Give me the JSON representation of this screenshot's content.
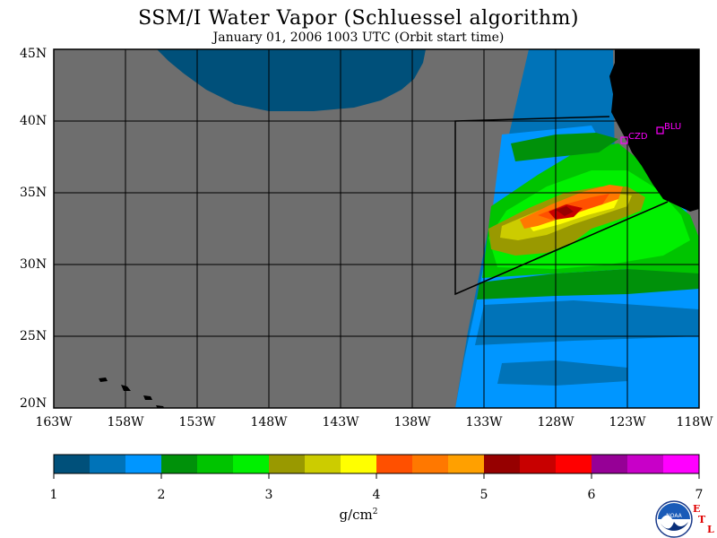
{
  "title": "SSM/I Water Vapor (Schluessel algorithm)",
  "subtitle": "January 01, 2006  1003 UTC  (Orbit start time)",
  "lat_labels": [
    "45N",
    "40N",
    "35N",
    "30N",
    "25N",
    "20N"
  ],
  "lon_labels": [
    "163W",
    "158W",
    "153W",
    "148W",
    "143W",
    "138W",
    "133W",
    "128W",
    "123W",
    "118W"
  ],
  "map_extent": {
    "lon": [
      -163,
      -118
    ],
    "lat": [
      20,
      45
    ]
  },
  "stations": [
    {
      "code": "CZD",
      "lon": -123.0,
      "lat": 38.6
    },
    {
      "code": "BLU",
      "lon": -120.8,
      "lat": 39.3
    }
  ],
  "colorbar": {
    "min": 1,
    "max": 7,
    "tick_labels": [
      "1",
      "2",
      "3",
      "4",
      "5",
      "6",
      "7"
    ],
    "colors": [
      "#00507a",
      "#0073b8",
      "#0096ff",
      "#00910a",
      "#00c400",
      "#00f000",
      "#999900",
      "#cccc00",
      "#ffff00",
      "#ff5000",
      "#ff7800",
      "#ffa000",
      "#960000",
      "#c80000",
      "#ff0000",
      "#960096",
      "#c800c8",
      "#ff00ff"
    ]
  },
  "unit_base": "g/cm",
  "unit_exp": "2",
  "colors": {
    "no_data": "#6e6e6e",
    "land": "#000000",
    "station": "#ff00ff"
  },
  "logo": {
    "name": "noaa-logo-icon",
    "text": "NOAA"
  },
  "etl_logo": {
    "e": "E",
    "t": "T",
    "l": "L"
  }
}
